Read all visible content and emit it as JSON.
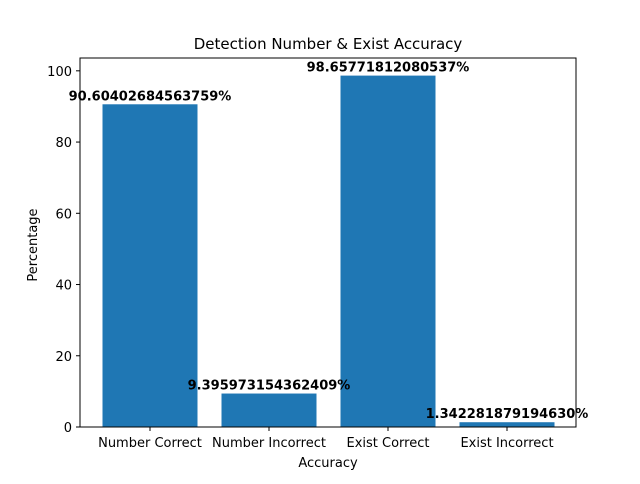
{
  "chart_data": {
    "type": "bar",
    "title": "Detection Number & Exist Accuracy",
    "xlabel": "Accuracy",
    "ylabel": "Percentage",
    "categories": [
      "Number Correct",
      "Number Incorrect",
      "Exist Correct",
      "Exist Incorrect"
    ],
    "values": [
      90.60402684563759,
      9.395973154362409,
      98.65771812080537,
      1.34228187919463
    ],
    "data_labels": [
      "90.60402684563759%",
      "9.395973154362409%",
      "98.65771812080537%",
      "1.342281879194630%"
    ],
    "ylim": [
      0,
      103.6
    ],
    "yticks": [
      0,
      20,
      40,
      60,
      80,
      100
    ],
    "ytick_labels": [
      "0",
      "20",
      "40",
      "60",
      "80",
      "100"
    ],
    "bar_color": "#1f77b4",
    "grid": false,
    "legend": "none"
  }
}
